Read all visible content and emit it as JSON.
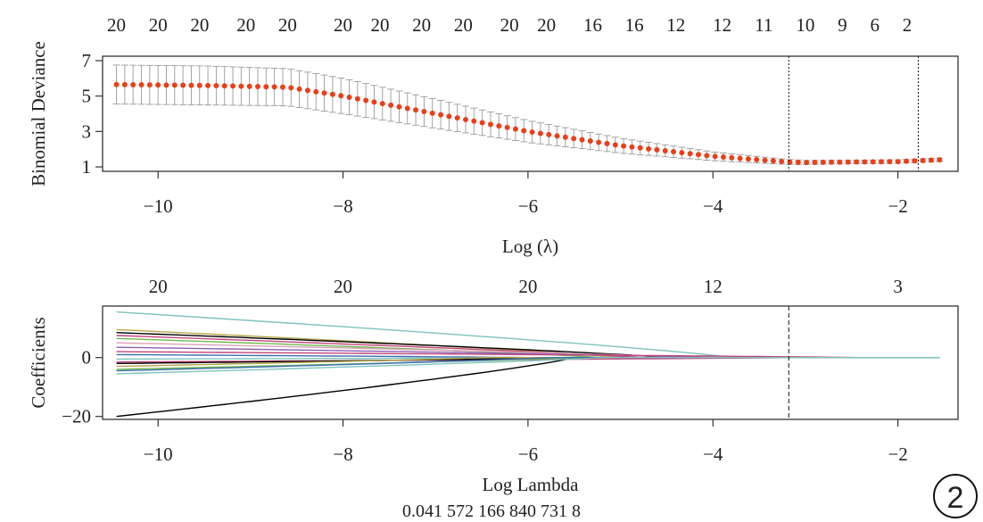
{
  "chart_data": [
    {
      "type": "scatter",
      "ylabel": "Binomial Deviance",
      "xlabel": "Log (λ)",
      "xlim": [
        -10.6,
        -1.35
      ],
      "ylim": [
        0.75,
        7.25
      ],
      "x_ticks": [
        -10,
        -8,
        -6,
        -4,
        -2
      ],
      "y_ticks": [
        1,
        3,
        5,
        7
      ],
      "x_tick_labels": [
        "−10",
        "−8",
        "−6",
        "−4",
        "−2"
      ],
      "y_tick_labels": [
        "1",
        "3",
        "5",
        "7"
      ],
      "top_counts": [
        {
          "x": -10.45,
          "label": "20"
        },
        {
          "x": -10.0,
          "label": "20"
        },
        {
          "x": -9.55,
          "label": "20"
        },
        {
          "x": -9.05,
          "label": "20"
        },
        {
          "x": -8.6,
          "label": "20"
        },
        {
          "x": -8.0,
          "label": "20"
        },
        {
          "x": -7.6,
          "label": "20"
        },
        {
          "x": -7.15,
          "label": "20"
        },
        {
          "x": -6.7,
          "label": "20"
        },
        {
          "x": -6.2,
          "label": "20"
        },
        {
          "x": -5.8,
          "label": "20"
        },
        {
          "x": -5.3,
          "label": "16"
        },
        {
          "x": -4.85,
          "label": "16"
        },
        {
          "x": -4.4,
          "label": "12"
        },
        {
          "x": -3.9,
          "label": "12"
        },
        {
          "x": -3.45,
          "label": "11"
        },
        {
          "x": -3.0,
          "label": "10"
        },
        {
          "x": -2.6,
          "label": "9"
        },
        {
          "x": -2.25,
          "label": "6"
        },
        {
          "x": -1.9,
          "label": "2"
        }
      ],
      "vlines": [
        -3.18,
        -1.78
      ],
      "point_color": "#e8401c",
      "errorbar_color": "#9a9a9a",
      "x_range": [
        -10.45,
        -1.55
      ],
      "n_points": 100,
      "curve_knots": {
        "x": [
          -10.45,
          -9.5,
          -8.6,
          -8.0,
          -7.0,
          -6.0,
          -5.0,
          -4.0,
          -3.2,
          -3.0,
          -2.6,
          -2.0,
          -1.55
        ],
        "mean": [
          5.65,
          5.6,
          5.5,
          5.0,
          4.0,
          3.0,
          2.2,
          1.6,
          1.28,
          1.25,
          1.27,
          1.3,
          1.4
        ],
        "half_width": [
          1.1,
          1.1,
          1.05,
          1.0,
          0.82,
          0.62,
          0.42,
          0.25,
          0.14,
          0.12,
          0.1,
          0.1,
          0.1
        ]
      }
    },
    {
      "type": "line",
      "ylabel": "Coefficients",
      "xlabel": "Log Lambda",
      "xlim": [
        -10.6,
        -1.35
      ],
      "ylim": [
        -21.0,
        17.5
      ],
      "x_ticks": [
        -10,
        -8,
        -6,
        -4,
        -2
      ],
      "y_ticks": [
        -20,
        0
      ],
      "x_tick_labels": [
        "−10",
        "−8",
        "−6",
        "−4",
        "−2"
      ],
      "y_tick_labels": [
        "−20",
        "0"
      ],
      "top_counts": [
        {
          "x": -10.0,
          "label": "20"
        },
        {
          "x": -8.0,
          "label": "20"
        },
        {
          "x": -6.0,
          "label": "20"
        },
        {
          "x": -4.0,
          "label": "12"
        },
        {
          "x": -2.0,
          "label": "3"
        }
      ],
      "vlines": [
        -3.18
      ],
      "series": [
        {
          "color": "#7fc3bd",
          "start": 15.5,
          "zero_at": -3.8
        },
        {
          "color": "#000000",
          "start": -20.0,
          "zero_at": -5.5
        },
        {
          "color": "#b7a64c",
          "start": 9.5,
          "zero_at": -5.0
        },
        {
          "color": "#000000",
          "start": 8.5,
          "zero_at": -4.5
        },
        {
          "color": "#c2447c",
          "start": 7.5,
          "zero_at": -4.8
        },
        {
          "color": "#6fb84d",
          "start": 6.5,
          "zero_at": -5.2
        },
        {
          "color": "#d8a3b8",
          "start": 5.0,
          "zero_at": -4.2
        },
        {
          "color": "#8a5fb2",
          "start": 3.5,
          "zero_at": -4.0
        },
        {
          "color": "#c2447c",
          "start": 2.0,
          "zero_at": -2.4
        },
        {
          "color": "#3e6fb0",
          "start": 1.0,
          "zero_at": -6.0
        },
        {
          "color": "#7fc3bd",
          "start": -0.5,
          "zero_at": -5.0
        },
        {
          "color": "#c2447c",
          "start": -1.5,
          "zero_at": -3.2
        },
        {
          "color": "#000000",
          "start": -2.0,
          "zero_at": -5.5
        },
        {
          "color": "#b7a64c",
          "start": -3.0,
          "zero_at": -6.5
        },
        {
          "color": "#6fb84d",
          "start": -4.0,
          "zero_at": -5.5
        },
        {
          "color": "#3e6fb0",
          "start": -4.5,
          "zero_at": -5.8
        },
        {
          "color": "#7fc3bd",
          "start": -5.5,
          "zero_at": -5.2
        }
      ]
    }
  ],
  "footer_text": "0.041 572 166 840 731 8",
  "panel_number": "2"
}
